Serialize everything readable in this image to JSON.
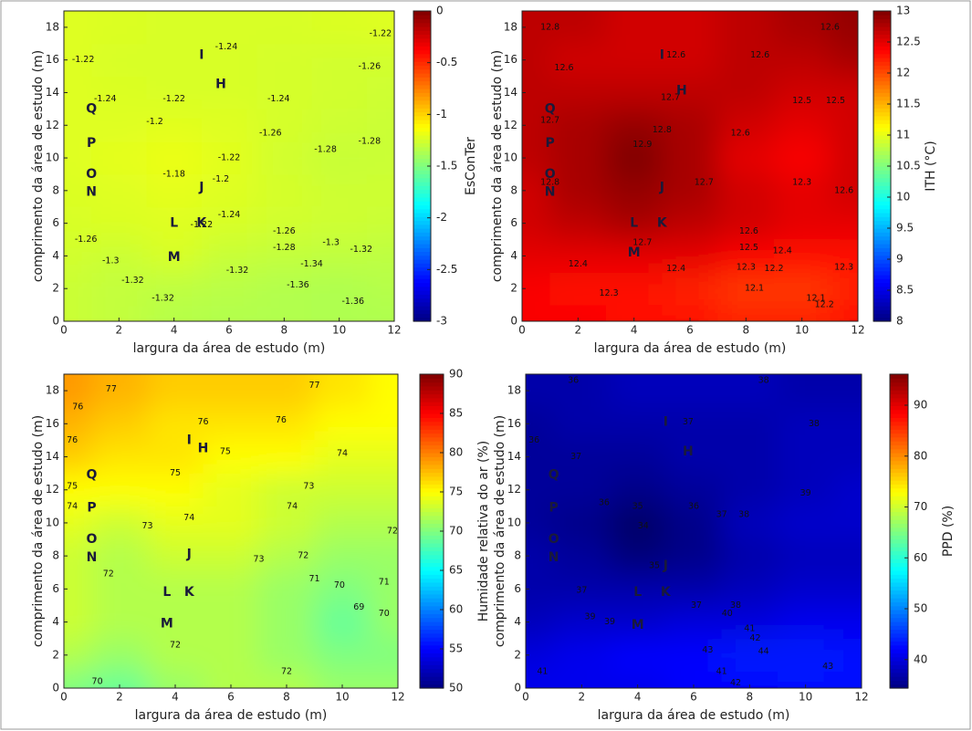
{
  "chart_data": [
    {
      "type": "contour",
      "xlabel": "largura da área de estudo (m)",
      "ylabel": "comprimento da área de estudo (m)",
      "colorbar_label": "EsConTer",
      "colormap": "jet",
      "xlim": [
        0,
        12
      ],
      "ylim": [
        0,
        19
      ],
      "xticks": [
        0,
        2,
        4,
        6,
        8,
        10,
        12
      ],
      "yticks": [
        0,
        2,
        4,
        6,
        8,
        10,
        12,
        14,
        16,
        18
      ],
      "clim": [
        -3,
        0
      ],
      "cticks": [
        -3,
        -2.5,
        -2,
        -1.5,
        -1,
        -0.5,
        0
      ],
      "grid_x": [
        0,
        2,
        4,
        6,
        8,
        10,
        12
      ],
      "grid_y": [
        0,
        2,
        4,
        6,
        8,
        10,
        12,
        14,
        16,
        18
      ],
      "field": [
        [
          -1.28,
          -1.3,
          -1.34,
          -1.35,
          -1.35,
          -1.36,
          -1.36
        ],
        [
          -1.28,
          -1.3,
          -1.32,
          -1.33,
          -1.35,
          -1.36,
          -1.34
        ],
        [
          -1.26,
          -1.28,
          -1.24,
          -1.29,
          -1.3,
          -1.31,
          -1.32
        ],
        [
          -1.24,
          -1.23,
          -1.22,
          -1.24,
          -1.26,
          -1.27,
          -1.28
        ],
        [
          -1.23,
          -1.22,
          -1.2,
          -1.22,
          -1.25,
          -1.27,
          -1.27
        ],
        [
          -1.22,
          -1.2,
          -1.18,
          -1.21,
          -1.26,
          -1.29,
          -1.28
        ],
        [
          -1.22,
          -1.22,
          -1.21,
          -1.22,
          -1.25,
          -1.27,
          -1.28
        ],
        [
          -1.22,
          -1.23,
          -1.24,
          -1.24,
          -1.25,
          -1.26,
          -1.27
        ],
        [
          -1.22,
          -1.24,
          -1.24,
          -1.24,
          -1.25,
          -1.26,
          -1.26
        ],
        [
          -1.22,
          -1.23,
          -1.24,
          -1.24,
          -1.24,
          -1.23,
          -1.22
        ]
      ],
      "contour_labels": {
        "x": [
          5.9,
          11.1,
          1.5,
          4.0,
          3.3,
          7.8,
          7.5,
          9.5,
          11.1,
          4.0,
          5.7,
          6.0,
          6.0,
          8.0,
          8.0,
          9.7,
          10.8,
          1.7,
          2.5,
          6.3,
          9.0,
          8.5,
          10.5,
          0.8,
          5.0,
          3.6,
          11.5,
          0.7
        ],
        "y": [
          16.8,
          15.6,
          13.6,
          13.6,
          12.2,
          13.6,
          11.5,
          10.5,
          11.0,
          9.0,
          8.7,
          10.0,
          6.5,
          5.5,
          4.5,
          4.8,
          4.4,
          3.7,
          2.5,
          3.1,
          3.5,
          2.2,
          1.2,
          5.0,
          5.9,
          1.4,
          17.6,
          16.0
        ],
        "values": [
          -1.24,
          -1.26,
          -1.24,
          -1.22,
          -1.2,
          -1.24,
          -1.26,
          -1.28,
          -1.28,
          -1.18,
          -1.2,
          -1.22,
          -1.24,
          -1.26,
          -1.28,
          -1.3,
          -1.32,
          -1.3,
          -1.32,
          -1.32,
          -1.34,
          -1.36,
          -1.36,
          -1.26,
          -1.22,
          -1.32,
          -1.22,
          -1.22
        ]
      },
      "points": {
        "labels": [
          "Q",
          "P",
          "O",
          "N",
          "I",
          "H",
          "J",
          "L",
          "K",
          "M"
        ],
        "x": [
          1.0,
          1.0,
          1.0,
          1.0,
          5.0,
          5.7,
          5.0,
          4.0,
          5.0,
          4.0
        ],
        "y": [
          13.0,
          10.9,
          9.0,
          7.9,
          16.3,
          14.5,
          8.2,
          6.0,
          6.0,
          3.9
        ]
      }
    },
    {
      "type": "contour",
      "xlabel": "largura da área de estudo (m)",
      "ylabel": "comprimento da área de estudo (m)",
      "colorbar_label": "ITH (°C)",
      "colormap": "jet",
      "xlim": [
        0,
        12
      ],
      "ylim": [
        0,
        19
      ],
      "xticks": [
        0,
        2,
        4,
        6,
        8,
        10,
        12
      ],
      "yticks": [
        0,
        2,
        4,
        6,
        8,
        10,
        12,
        14,
        16,
        18
      ],
      "clim": [
        8,
        13
      ],
      "cticks": [
        8,
        8.5,
        9,
        9.5,
        10,
        10.5,
        11,
        11.5,
        12,
        12.5,
        13
      ],
      "grid_x": [
        0,
        2,
        4,
        6,
        8,
        10,
        12
      ],
      "grid_y": [
        0,
        2,
        4,
        6,
        8,
        10,
        12,
        14,
        16,
        18
      ],
      "field": [
        [
          12.4,
          12.4,
          12.3,
          12.3,
          12.2,
          12.2,
          12.3
        ],
        [
          12.4,
          12.3,
          12.3,
          12.2,
          12.1,
          12.1,
          12.2
        ],
        [
          12.5,
          12.5,
          12.5,
          12.5,
          12.4,
          12.3,
          12.3
        ],
        [
          12.6,
          12.7,
          12.8,
          12.7,
          12.6,
          12.5,
          12.5
        ],
        [
          12.6,
          12.8,
          12.9,
          12.8,
          12.6,
          12.5,
          12.6
        ],
        [
          12.7,
          12.8,
          13.0,
          12.8,
          12.5,
          12.4,
          12.6
        ],
        [
          12.7,
          12.8,
          12.9,
          12.8,
          12.6,
          12.5,
          12.6
        ],
        [
          12.7,
          12.7,
          12.7,
          12.7,
          12.7,
          12.6,
          12.6
        ],
        [
          12.7,
          12.6,
          12.6,
          12.6,
          12.7,
          12.7,
          12.8
        ],
        [
          12.7,
          12.7,
          12.6,
          12.6,
          12.7,
          12.8,
          12.9
        ]
      ],
      "contour_labels": {
        "x": [
          5.5,
          8.5,
          1.5,
          5.3,
          5.0,
          4.3,
          1.0,
          6.5,
          7.8,
          10.0,
          11.2,
          10.0,
          11.5,
          8.1,
          8.1,
          9.3,
          8.0,
          9.0,
          8.3,
          10.5,
          10.8,
          11.5,
          2.0,
          5.5,
          3.1,
          1.0,
          1.0,
          11.0,
          4.3
        ],
        "y": [
          16.3,
          16.3,
          15.5,
          13.7,
          11.7,
          10.8,
          8.5,
          8.5,
          11.5,
          13.5,
          13.5,
          8.5,
          8.0,
          5.5,
          4.5,
          4.3,
          3.3,
          3.2,
          2.0,
          1.4,
          1.0,
          3.3,
          3.5,
          3.2,
          1.7,
          12.3,
          18.0,
          18.0,
          4.8
        ],
        "values": [
          12.6,
          12.6,
          12.6,
          12.7,
          12.8,
          12.9,
          12.8,
          12.7,
          12.6,
          12.5,
          12.5,
          12.3,
          12.6,
          12.6,
          12.5,
          12.4,
          12.3,
          12.2,
          12.1,
          12.1,
          12.2,
          12.3,
          12.4,
          12.4,
          12.3,
          12.7,
          12.8,
          12.6,
          12.7
        ]
      },
      "points": {
        "labels": [
          "Q",
          "P",
          "O",
          "N",
          "I",
          "H",
          "J",
          "L",
          "K",
          "M"
        ],
        "x": [
          1.0,
          1.0,
          1.0,
          1.0,
          5.0,
          5.7,
          5.0,
          4.0,
          5.0,
          4.0
        ],
        "y": [
          13.0,
          10.9,
          9.0,
          7.9,
          16.3,
          14.1,
          8.2,
          6.0,
          6.0,
          4.2
        ]
      }
    },
    {
      "type": "contour",
      "xlabel": "largura da área de estudo (m)",
      "ylabel": "comprimento da área de estudo (m)",
      "colorbar_label": "Humidade relativa do ar (%)",
      "colormap": "jet",
      "xlim": [
        0,
        12
      ],
      "ylim": [
        0,
        19
      ],
      "xticks": [
        0,
        2,
        4,
        6,
        8,
        10,
        12
      ],
      "yticks": [
        0,
        2,
        4,
        6,
        8,
        10,
        12,
        14,
        16,
        18
      ],
      "clim": [
        50,
        90
      ],
      "cticks": [
        50,
        55,
        60,
        65,
        70,
        75,
        80,
        85,
        90
      ],
      "grid_x": [
        0,
        2,
        4,
        6,
        8,
        10,
        12
      ],
      "grid_y": [
        0,
        2,
        4,
        6,
        8,
        10,
        12,
        14,
        16,
        18
      ],
      "field": [
        [
          70,
          69,
          71,
          72,
          72,
          71,
          71
        ],
        [
          72,
          71,
          72,
          72,
          71,
          70,
          70
        ],
        [
          73,
          72,
          72,
          72,
          71,
          69,
          71
        ],
        [
          73,
          72,
          72,
          72,
          71,
          70,
          71
        ],
        [
          73,
          72,
          73,
          73,
          72,
          71,
          71
        ],
        [
          74,
          73,
          74,
          74,
          73,
          72,
          72
        ],
        [
          75,
          75,
          75,
          74,
          73,
          73,
          73
        ],
        [
          77,
          76,
          76,
          75,
          75,
          74,
          74
        ],
        [
          78,
          77,
          76,
          76,
          76,
          75,
          75
        ],
        [
          79,
          78,
          77,
          77,
          77,
          76,
          75
        ]
      ],
      "contour_labels": {
        "x": [
          1.7,
          9.0,
          5.0,
          7.8,
          5.8,
          4.0,
          10.0,
          8.8,
          8.2,
          4.5,
          3.0,
          7.0,
          1.6,
          8.6,
          9.0,
          9.9,
          10.6,
          4.0,
          8.0,
          1.2,
          0.3,
          0.3,
          0.3,
          11.8,
          11.5,
          11.5,
          0.5
        ],
        "y": [
          18.1,
          18.3,
          16.1,
          16.2,
          14.3,
          13.0,
          14.2,
          12.2,
          11.0,
          10.3,
          9.8,
          7.8,
          6.9,
          8.0,
          6.6,
          6.2,
          4.9,
          2.6,
          1.0,
          0.4,
          15.0,
          12.2,
          11.0,
          9.5,
          6.4,
          4.5,
          17.0
        ],
        "values": [
          77,
          77,
          76,
          76,
          75,
          75,
          74,
          73,
          74,
          74,
          73,
          73,
          72,
          72,
          71,
          70,
          69,
          72,
          72,
          70,
          76,
          75,
          74,
          72,
          71,
          70,
          76
        ]
      },
      "points": {
        "labels": [
          "Q",
          "P",
          "O",
          "N",
          "I",
          "H",
          "J",
          "L",
          "K",
          "M"
        ],
        "x": [
          1.0,
          1.0,
          1.0,
          1.0,
          4.5,
          5.0,
          4.5,
          3.7,
          4.5,
          3.7
        ],
        "y": [
          12.9,
          10.9,
          9.0,
          7.9,
          15.0,
          14.5,
          8.1,
          5.8,
          5.8,
          3.9
        ]
      }
    },
    {
      "type": "contour",
      "xlabel": "largura da área de estudo (m)",
      "ylabel": "comprimento da área de estudo (m)",
      "colorbar_label": "PPD (%)",
      "colormap": "jet",
      "xlim": [
        0,
        12
      ],
      "ylim": [
        0,
        19
      ],
      "xticks": [
        0,
        2,
        4,
        6,
        8,
        10,
        12
      ],
      "yticks": [
        0,
        2,
        4,
        6,
        8,
        10,
        12,
        14,
        16,
        18
      ],
      "clim": [
        34.4,
        96.1
      ],
      "cticks": [
        40,
        50,
        60,
        70,
        80,
        90
      ],
      "grid_x": [
        0,
        2,
        4,
        6,
        8,
        10,
        12
      ],
      "grid_y": [
        0,
        2,
        4,
        6,
        8,
        10,
        12,
        14,
        16,
        18
      ],
      "field": [
        [
          41,
          41,
          41,
          42,
          42,
          43,
          43
        ],
        [
          40,
          41,
          42,
          42,
          44,
          44,
          43
        ],
        [
          38,
          39,
          39,
          40,
          40,
          41,
          41
        ],
        [
          37,
          37,
          37,
          37,
          38,
          39,
          39
        ],
        [
          37,
          36,
          34,
          35,
          37,
          38,
          38
        ],
        [
          36,
          35,
          33,
          35,
          38,
          39,
          39
        ],
        [
          36,
          36,
          35,
          36,
          37,
          38,
          39
        ],
        [
          36,
          36,
          36,
          37,
          37,
          38,
          38
        ],
        [
          36,
          37,
          37,
          37,
          37,
          38,
          38
        ],
        [
          37,
          37,
          38,
          38,
          38,
          37,
          37
        ]
      ],
      "contour_labels": {
        "x": [
          1.7,
          8.5,
          5.8,
          10.3,
          1.8,
          2.8,
          4.0,
          4.2,
          6.0,
          7.0,
          7.8,
          10.0,
          4.6,
          2.0,
          6.1,
          7.5,
          2.3,
          7.2,
          8.0,
          8.2,
          6.5,
          8.5,
          10.8,
          0.6,
          7.0,
          7.5,
          0.3,
          3.0
        ],
        "y": [
          18.6,
          18.6,
          16.1,
          16.0,
          14.0,
          11.2,
          11.0,
          9.8,
          11.0,
          10.5,
          10.5,
          11.8,
          7.4,
          5.9,
          5.0,
          5.0,
          4.3,
          4.5,
          3.6,
          3.0,
          2.3,
          2.2,
          1.3,
          1.0,
          1.0,
          0.3,
          15.0,
          4.0
        ],
        "values": [
          36,
          38,
          37,
          38,
          37,
          36,
          35,
          34,
          36,
          37,
          38,
          39,
          35,
          37,
          37,
          38,
          39,
          40,
          41,
          42,
          43,
          44,
          43,
          41,
          41,
          42,
          36,
          39
        ]
      },
      "points": {
        "labels": [
          "Q",
          "P",
          "O",
          "N",
          "I",
          "H",
          "J",
          "L",
          "K",
          "M"
        ],
        "x": [
          1.0,
          1.0,
          1.0,
          1.0,
          5.0,
          5.8,
          5.0,
          4.0,
          5.0,
          4.0
        ],
        "y": [
          12.9,
          10.9,
          9.0,
          7.9,
          16.1,
          14.3,
          7.4,
          5.8,
          5.8,
          3.8
        ]
      }
    }
  ]
}
